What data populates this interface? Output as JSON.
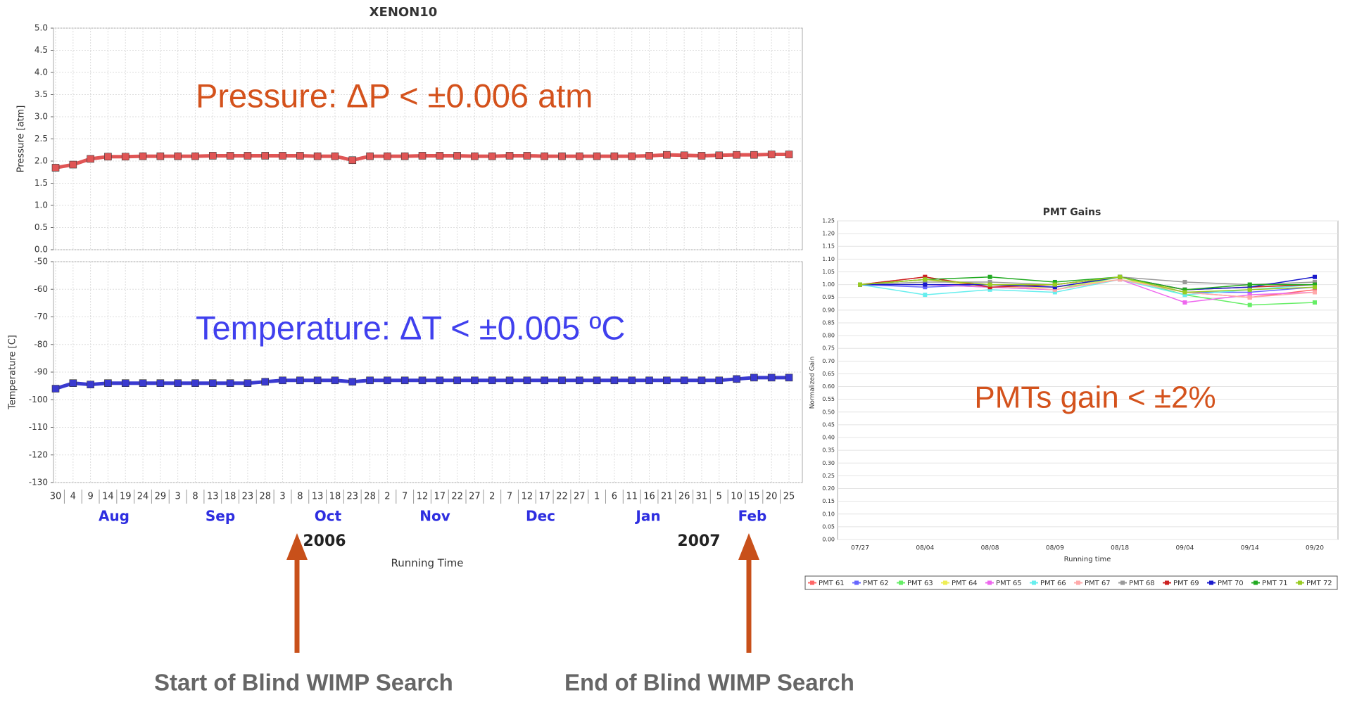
{
  "chart_data": [
    {
      "type": "line",
      "title": "XENON10",
      "x_label": "Running Time",
      "grid": true,
      "categories": [
        "30",
        "4",
        "9",
        "14",
        "19",
        "24",
        "29",
        "3",
        "8",
        "13",
        "18",
        "23",
        "28",
        "3",
        "8",
        "13",
        "18",
        "23",
        "28",
        "2",
        "7",
        "12",
        "17",
        "22",
        "27",
        "2",
        "7",
        "12",
        "17",
        "22",
        "27",
        "1",
        "6",
        "11",
        "16",
        "21",
        "26",
        "31",
        "5",
        "10",
        "15",
        "20",
        "25"
      ],
      "months": [
        "Aug",
        "Sep",
        "Oct",
        "Nov",
        "Dec",
        "Jan",
        "Feb"
      ],
      "years": [
        "2006",
        "2007"
      ],
      "panels": [
        {
          "y_label": "Pressure [atm]",
          "annotation": "Pressure: ΔP < ±0.006 atm",
          "annotation_color": "#d4521c",
          "ylim": [
            0,
            5
          ],
          "yticks": [
            {
              "value": 0,
              "label": "0.0"
            },
            0.5,
            {
              "value": 1,
              "label": "1.0"
            },
            1.5,
            {
              "value": 2,
              "label": "2.0"
            },
            2.5,
            {
              "value": 3,
              "label": "3.0"
            },
            3.5,
            {
              "value": 4,
              "label": "4.0"
            },
            4.5,
            {
              "value": 5,
              "label": "5.0"
            }
          ],
          "series": [
            {
              "name": "Pressure",
              "color": "#e05555",
              "values": [
                1.85,
                1.92,
                2.05,
                2.1,
                2.1,
                2.11,
                2.11,
                2.11,
                2.11,
                2.12,
                2.12,
                2.12,
                2.12,
                2.12,
                2.12,
                2.11,
                2.11,
                2.02,
                2.11,
                2.11,
                2.11,
                2.12,
                2.12,
                2.12,
                2.11,
                2.11,
                2.12,
                2.12,
                2.11,
                2.11,
                2.11,
                2.11,
                2.11,
                2.11,
                2.12,
                2.14,
                2.13,
                2.12,
                2.13,
                2.14,
                2.14,
                2.15,
                2.15
              ]
            }
          ]
        },
        {
          "y_label": "Temperature [C]",
          "annotation": "Temperature: ΔT < ±0.005 ºC",
          "annotation_color": "#4040ee",
          "ylim": [
            -130,
            -50
          ],
          "yticks": [
            -130,
            -120,
            -110,
            -100,
            -90,
            -80,
            -70,
            -60,
            -50
          ],
          "series": [
            {
              "name": "Temperature",
              "color": "#3a3ad0",
              "values": [
                -96,
                -94,
                -94.5,
                -94,
                -94,
                -94,
                -94,
                -94,
                -94,
                -94,
                -94,
                -94,
                -93.5,
                -93,
                -93,
                -93,
                -93,
                -93.5,
                -93,
                -93,
                -93,
                -93,
                -93,
                -93,
                -93,
                -93,
                -93,
                -93,
                -93,
                -93,
                -93,
                -93,
                -93,
                -93,
                -93,
                -93,
                -93,
                -93,
                -93,
                -92.5,
                -92,
                -92,
                -92
              ]
            }
          ]
        }
      ]
    },
    {
      "type": "line",
      "title": "PMT Gains",
      "x_label": "Running time",
      "y_label": "Normalized Gain",
      "grid": true,
      "annotation": "PMTs gain < ±2%",
      "annotation_color": "#d4521c",
      "categories": [
        "07/27",
        "08/04",
        "08/08",
        "08/09",
        "08/18",
        "09/04",
        "09/14",
        "09/20"
      ],
      "ylim": [
        0,
        1.25
      ],
      "yticks": [
        {
          "value": 0,
          "label": "0.00"
        },
        0.05,
        {
          "value": 0.1,
          "label": "0.10"
        },
        0.15,
        {
          "value": 0.2,
          "label": "0.20"
        },
        0.25,
        {
          "value": 0.3,
          "label": "0.30"
        },
        0.35,
        {
          "value": 0.4,
          "label": "0.40"
        },
        0.45,
        {
          "value": 0.5,
          "label": "0.50"
        },
        0.55,
        {
          "value": 0.6,
          "label": "0.60"
        },
        0.65,
        {
          "value": 0.7,
          "label": "0.70"
        },
        0.75,
        {
          "value": 0.8,
          "label": "0.80"
        },
        0.85,
        {
          "value": 0.9,
          "label": "0.90"
        },
        0.95,
        {
          "value": 1,
          "label": "1.00"
        },
        1.05,
        {
          "value": 1.1,
          "label": "1.10"
        },
        1.15,
        {
          "value": 1.2,
          "label": "1.20"
        },
        1.25
      ],
      "series": [
        {
          "name": "PMT 61",
          "color": "#ff6666",
          "values": [
            1.0,
            1.03,
            0.99,
            0.99,
            1.03,
            0.97,
            0.95,
            0.98
          ]
        },
        {
          "name": "PMT 62",
          "color": "#6666ff",
          "values": [
            1.0,
            0.99,
            1.0,
            0.99,
            1.03,
            0.97,
            0.97,
            0.99
          ]
        },
        {
          "name": "PMT 63",
          "color": "#66ee66",
          "values": [
            1.0,
            1.0,
            0.99,
            0.98,
            1.03,
            0.96,
            0.92,
            0.93
          ]
        },
        {
          "name": "PMT 64",
          "color": "#eeee55",
          "values": [
            1.0,
            1.02,
            0.99,
            0.99,
            1.02,
            0.98,
            0.99,
            1.0
          ]
        },
        {
          "name": "PMT 65",
          "color": "#ee66ee",
          "values": [
            1.0,
            1.0,
            0.99,
            0.98,
            1.02,
            0.93,
            0.96,
            0.97
          ]
        },
        {
          "name": "PMT 66",
          "color": "#66eeee",
          "values": [
            1.0,
            0.96,
            0.98,
            0.97,
            1.02,
            0.96,
            0.98,
            1.0
          ]
        },
        {
          "name": "PMT 67",
          "color": "#ffaaaa",
          "values": [
            1.0,
            1.02,
            1.0,
            0.98,
            1.02,
            0.97,
            0.95,
            0.97
          ]
        },
        {
          "name": "PMT 68",
          "color": "#999999",
          "values": [
            1.0,
            1.01,
            1.01,
            1.0,
            1.03,
            1.01,
            1.0,
            1.01
          ]
        },
        {
          "name": "PMT 69",
          "color": "#cc2222",
          "values": [
            1.0,
            1.03,
            0.99,
            1.0,
            1.03,
            0.98,
            0.99,
            1.0
          ]
        },
        {
          "name": "PMT 70",
          "color": "#1a1acc",
          "values": [
            1.0,
            1.0,
            1.0,
            0.99,
            1.03,
            0.98,
            0.99,
            1.03
          ]
        },
        {
          "name": "PMT 71",
          "color": "#22aa22",
          "values": [
            1.0,
            1.02,
            1.03,
            1.01,
            1.03,
            0.98,
            1.0,
            1.0
          ]
        },
        {
          "name": "PMT 72",
          "color": "#99cc22",
          "values": [
            1.0,
            1.02,
            1.0,
            1.0,
            1.03,
            0.97,
            0.98,
            0.99
          ]
        }
      ]
    }
  ],
  "notes": {
    "start": "Start of  Blind WIMP Search",
    "end": "End of Blind WIMP Search"
  }
}
